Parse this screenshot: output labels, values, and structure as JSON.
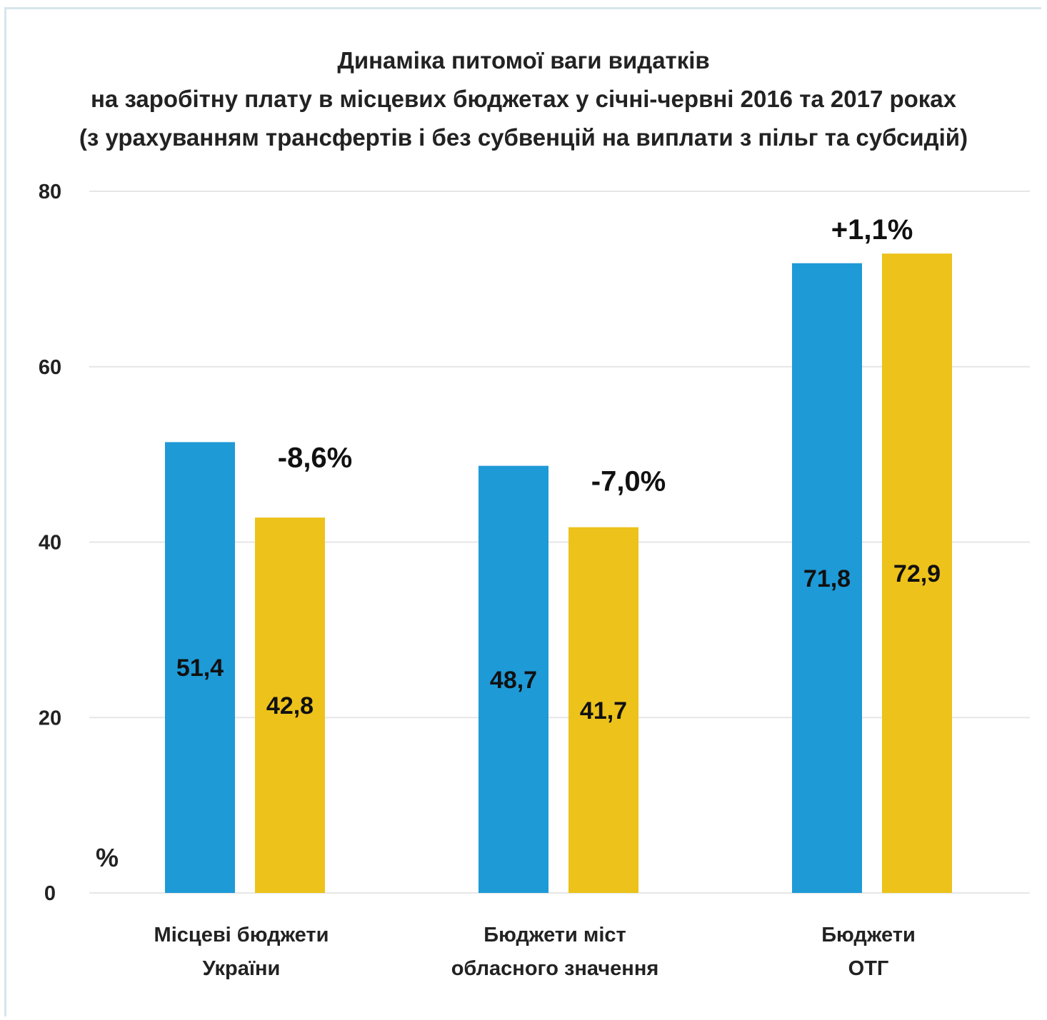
{
  "chart_data": {
    "type": "bar",
    "title_lines": [
      "Динаміка питомої ваги видатків",
      "на заробітну плату в місцевих бюджетах у січні-червні 2016 та 2017 роках",
      "(з урахуванням трансфертів і без субвенцій на виплати з пільг та субсидій)"
    ],
    "ylabel": "%",
    "ylim": [
      0,
      80
    ],
    "yticks": [
      "0",
      "20",
      "40",
      "60",
      "80"
    ],
    "grid": true,
    "categories": [
      [
        "Місцеві бюджети",
        "України"
      ],
      [
        "Бюджети  міст",
        "обласного значення"
      ],
      [
        "Бюджети",
        "ОТГ"
      ]
    ],
    "series": [
      {
        "color": "#1e9ad6",
        "values": [
          51.4,
          48.7,
          71.8
        ],
        "labels": [
          "51,4",
          "48,7",
          "71,8"
        ]
      },
      {
        "color": "#edc21a",
        "values": [
          42.8,
          41.7,
          72.9
        ],
        "labels": [
          "42,8",
          "41,7",
          "72,9"
        ]
      }
    ],
    "annotations": [
      "-8,6%",
      "-7,0%",
      "+1,1%"
    ]
  }
}
